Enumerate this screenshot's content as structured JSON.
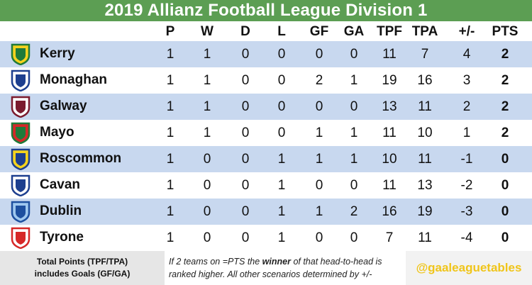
{
  "title": "2019 Allianz Football League Division 1",
  "columns": [
    "P",
    "W",
    "D",
    "L",
    "GF",
    "GA",
    "TPF",
    "TPA",
    "+/-",
    "PTS"
  ],
  "teams": [
    {
      "name": "Kerry",
      "P": "1",
      "W": "1",
      "D": "0",
      "L": "0",
      "GF": "0",
      "GA": "0",
      "TPF": "11",
      "TPA": "7",
      "diff": "4",
      "PTS": "2",
      "crest_colors": [
        "#1f7a3a",
        "#f4d21e"
      ]
    },
    {
      "name": "Monaghan",
      "P": "1",
      "W": "1",
      "D": "0",
      "L": "0",
      "GF": "2",
      "GA": "1",
      "TPF": "19",
      "TPA": "16",
      "diff": "3",
      "PTS": "2",
      "crest_colors": [
        "#1d3f8f",
        "#ffffff"
      ]
    },
    {
      "name": "Galway",
      "P": "1",
      "W": "1",
      "D": "0",
      "L": "0",
      "GF": "0",
      "GA": "0",
      "TPF": "13",
      "TPA": "11",
      "diff": "2",
      "PTS": "2",
      "crest_colors": [
        "#7b1b2e",
        "#ffffff"
      ]
    },
    {
      "name": "Mayo",
      "P": "1",
      "W": "1",
      "D": "0",
      "L": "0",
      "GF": "1",
      "GA": "1",
      "TPF": "11",
      "TPA": "10",
      "diff": "1",
      "PTS": "2",
      "crest_colors": [
        "#1f7a3a",
        "#d62828"
      ]
    },
    {
      "name": "Roscommon",
      "P": "1",
      "W": "0",
      "D": "0",
      "L": "1",
      "GF": "1",
      "GA": "1",
      "TPF": "10",
      "TPA": "11",
      "diff": "-1",
      "PTS": "0",
      "crest_colors": [
        "#1d3f8f",
        "#f4d21e"
      ]
    },
    {
      "name": "Cavan",
      "P": "1",
      "W": "0",
      "D": "0",
      "L": "1",
      "GF": "0",
      "GA": "0",
      "TPF": "11",
      "TPA": "13",
      "diff": "-2",
      "PTS": "0",
      "crest_colors": [
        "#1d3f8f",
        "#ffffff"
      ]
    },
    {
      "name": "Dublin",
      "P": "1",
      "W": "0",
      "D": "0",
      "L": "1",
      "GF": "1",
      "GA": "2",
      "TPF": "16",
      "TPA": "19",
      "diff": "-3",
      "PTS": "0",
      "crest_colors": [
        "#1d4f9f",
        "#9fc8ef"
      ]
    },
    {
      "name": "Tyrone",
      "P": "1",
      "W": "0",
      "D": "0",
      "L": "1",
      "GF": "0",
      "GA": "0",
      "TPF": "7",
      "TPA": "11",
      "diff": "-4",
      "PTS": "0",
      "crest_colors": [
        "#d62828",
        "#ffffff"
      ]
    }
  ],
  "footer": {
    "note_line1": "Total Points (TPF/TPA)",
    "note_line2": "includes Goals (GF/GA)",
    "rule_part1": "If 2 teams on =PTS the ",
    "rule_bold": "winner",
    "rule_part2": " of that head-to-head is",
    "rule_line2": "ranked higher. All other scenarios determined by +/-",
    "handle": "@gaaleaguetables"
  },
  "colors": {
    "title_bg": "#5c9e53",
    "row_shade": "#c8d8ef",
    "handle": "#f0c51a"
  }
}
